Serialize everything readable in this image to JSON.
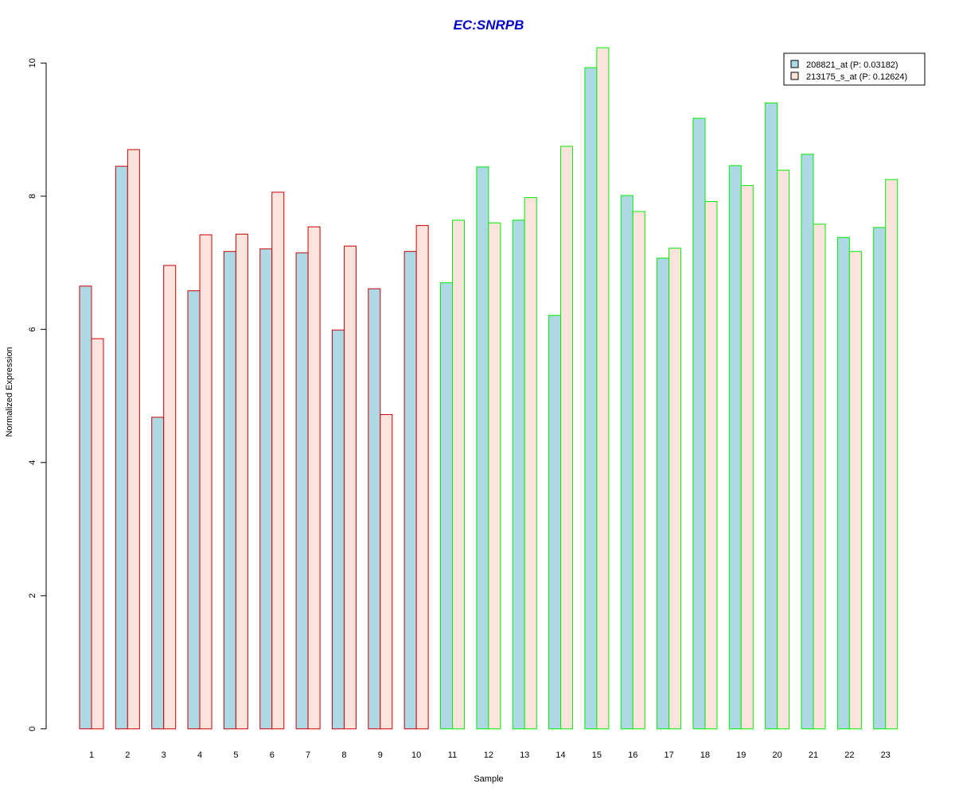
{
  "chart_data": {
    "type": "bar",
    "title": "EC:SNRPB",
    "xlabel": "Sample",
    "ylabel": "Normalized Expression",
    "ylim": [
      0,
      10
    ],
    "yticks": [
      0,
      2,
      4,
      6,
      8,
      10
    ],
    "grid": false,
    "legend_position": "top-right",
    "categories": [
      "1",
      "2",
      "3",
      "4",
      "5",
      "6",
      "7",
      "8",
      "9",
      "10",
      "11",
      "12",
      "13",
      "14",
      "15",
      "16",
      "17",
      "18",
      "19",
      "20",
      "21",
      "22",
      "23"
    ],
    "groups": [
      {
        "samples": [
          "1",
          "2",
          "3",
          "4",
          "5",
          "6",
          "7",
          "8",
          "9",
          "10"
        ],
        "border_color": "#cc0000"
      },
      {
        "samples": [
          "11",
          "12",
          "13",
          "14",
          "15",
          "16",
          "17",
          "18",
          "19",
          "20",
          "21",
          "22",
          "23"
        ],
        "border_color": "#00ee00"
      }
    ],
    "series": [
      {
        "name": "208821_at (P: 0.03182)",
        "fill": "#add8e6",
        "values": [
          6.65,
          8.45,
          4.68,
          6.58,
          7.17,
          7.21,
          7.15,
          5.99,
          6.61,
          7.17,
          6.7,
          8.44,
          7.64,
          6.21,
          9.93,
          8.01,
          7.07,
          9.17,
          8.46,
          9.4,
          8.63,
          7.38,
          7.53
        ]
      },
      {
        "name": "213175_s_at (P: 0.12624)",
        "fill": "#fce4dc",
        "values": [
          5.86,
          8.7,
          6.96,
          7.42,
          7.43,
          8.06,
          7.54,
          7.25,
          4.72,
          7.56,
          7.64,
          7.6,
          7.98,
          8.75,
          10.23,
          7.77,
          7.22,
          7.92,
          8.16,
          8.39,
          7.58,
          7.17,
          8.25
        ]
      }
    ],
    "title_color": "#0000cc"
  }
}
